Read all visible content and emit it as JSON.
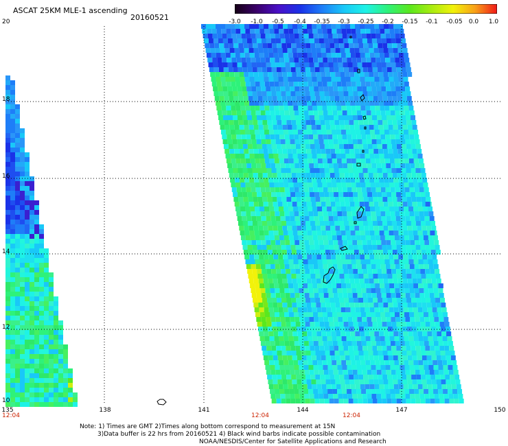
{
  "header": {
    "title": "ASCAT 25KM MLE-1 ascending",
    "date": "20160521"
  },
  "colorbar": {
    "labels": [
      "-3.0",
      "-1.0",
      "-0.5",
      "-0.4",
      "-0.35",
      "-0.3",
      "-0.25",
      "-0.2",
      "-0.15",
      "-0.1",
      "-0.05",
      "0.0",
      "1.0"
    ],
    "colors": [
      "#160016",
      "#3a006a",
      "#4a10c8",
      "#1a32e8",
      "#1e7ef8",
      "#19c8f8",
      "#1ef2e6",
      "#2ef27a",
      "#5ae81e",
      "#a8ec10",
      "#f2f20a",
      "#f8a018",
      "#f01818"
    ]
  },
  "map": {
    "y_axis_labels": [
      "20",
      "18",
      "16",
      "14",
      "12",
      "10"
    ],
    "x_axis_labels": [
      "135",
      "138",
      "141",
      "144",
      "147",
      "150"
    ],
    "time_labels": [
      "12:04",
      "12:04",
      "12:04"
    ],
    "lat_range": [
      10,
      20
    ],
    "lon_range": [
      135,
      150
    ]
  },
  "notes": {
    "line1": "Note: 1) Times are GMT 2)Times along bottom correspond to measurement at 15N",
    "line2": "3)Data buffer is 22 hrs from 20160521 4) Black wind barbs indicate possible contamination",
    "line3": "NOAA/NESDIS/Center for Satellite Applications and Research"
  }
}
